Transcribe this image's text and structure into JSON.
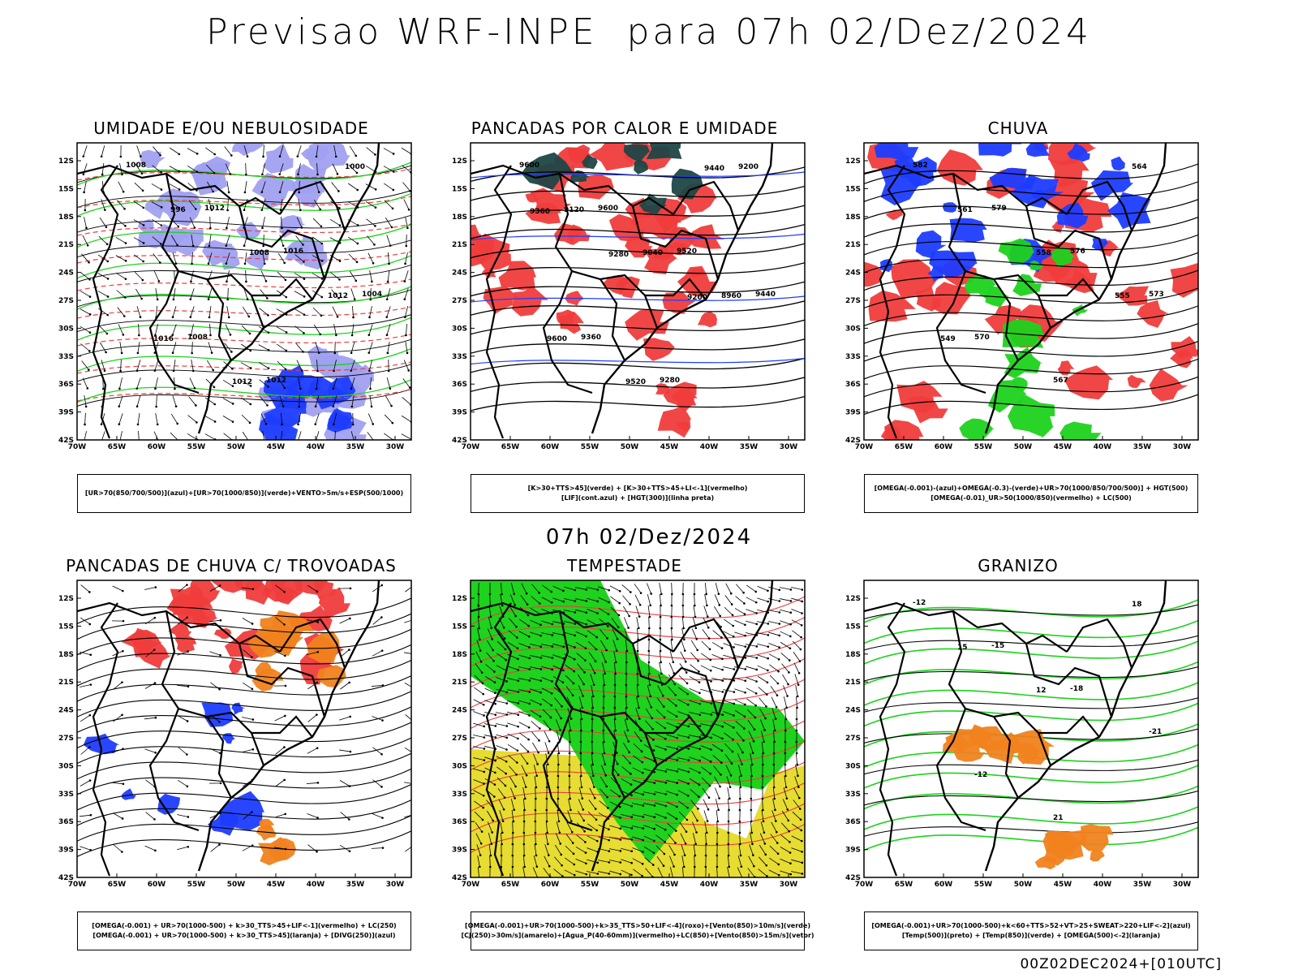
{
  "header": {
    "title": "Previsao WRF-INPE  para 07h 02/Dez/2024"
  },
  "mid_title": "07h 02/Dez/2024",
  "footer": "00Z02DEC2024+[010UTC]",
  "axes": {
    "lat_ticks": [
      "12S",
      "15S",
      "18S",
      "21S",
      "24S",
      "27S",
      "30S",
      "33S",
      "36S",
      "39S",
      "42S"
    ],
    "lon_ticks": [
      "70W",
      "65W",
      "60W",
      "55W",
      "50W",
      "45W",
      "40W",
      "35W",
      "30W"
    ]
  },
  "panels": [
    {
      "title": "UMIDADE E/OU NEBULOSIDADE",
      "legend": [
        "[UR>70(850/700/500)](azul)+[UR>70(1000/850)](verde)+VENTO>5m/s+ESP(500/1000)"
      ],
      "contour_labels": [
        "1008",
        "1012",
        "1016",
        "1004",
        "1008",
        "1012",
        "1000",
        "996",
        "1008",
        "1012",
        "1016",
        "1012"
      ]
    },
    {
      "title": "PANCADAS POR CALOR E UMIDADE",
      "legend": [
        "[K>30+TTS>45](verde) + [K>30+TTS>45+LI<-1](vermelho)",
        "[LIF](cont.azul) + [HGT(300)](linha preta)"
      ],
      "contour_labels": [
        "9600",
        "9600",
        "9520",
        "9440",
        "9360",
        "9280",
        "9200",
        "9120",
        "9040",
        "8960",
        "9600",
        "9520",
        "9440",
        "9360",
        "9280",
        "9200"
      ]
    },
    {
      "title": "CHUVA",
      "legend": [
        "[OMEGA(-0.001)-(azul)+OMEGA(-0.3)-(verde)+UR>70(1000/850/700/500)] + HGT(500)",
        "[OMEGA(-0.01)_UR>50(1000/850)(vermelho) + LC(500)"
      ],
      "contour_labels": [
        "582",
        "579",
        "576",
        "573",
        "570",
        "567",
        "564",
        "561",
        "558",
        "555",
        "549"
      ]
    },
    {
      "title": "PANCADAS DE CHUVA C/ TROVOADAS",
      "legend": [
        "[OMEGA(-0.001) + UR>70(1000-500) + k>30_TTS>45+LIF<-1](vermelho) + LC(250)",
        "[OMEGA(-0.001) + UR>70(1000-500) + k>30_TTS>45](laranja) + [DIVG(250)](azul)"
      ],
      "contour_labels": []
    },
    {
      "title": "TEMPESTADE",
      "legend": [
        "[OMEGA(-0.001)+UR>70(1000-500)+k>35_TTS>50+LIF<-4](roxo)+[Vento(850)>10m/s](verde)",
        "[CJ(250)>30m/s](amarelo)+[Agua_P(40-60mm)](vermelho)+LC(850)+[Vento(850)>15m/s](vetor)"
      ],
      "contour_labels": []
    },
    {
      "title": "GRANIZO",
      "legend": [
        "[OMEGA(-0.001)+UR>70(1000-500)+k<60+TTS>52+VT>25+SWEAT>220+LIF<-2](azul)",
        "[Temp(500)](preto) + [Temp(850)](verde) + [OMEGA(500)<-2](laranja)"
      ],
      "contour_labels": [
        "-12",
        "-15",
        "-18",
        "-21",
        "-12",
        "21",
        "18",
        "15",
        "12"
      ]
    }
  ],
  "colors": {
    "red": "#f03c3c",
    "green": "#1ed21e",
    "blue": "#1e3cff",
    "lightblue": "#a0a0f0",
    "yellow": "#e6dc32",
    "orange": "#f0821e",
    "darkteal": "#1e4646"
  }
}
